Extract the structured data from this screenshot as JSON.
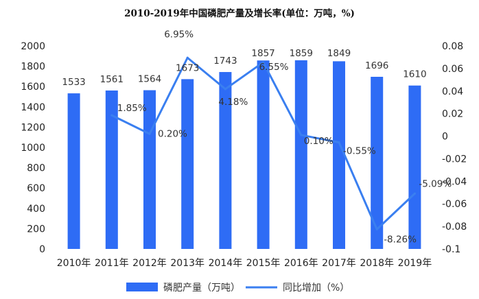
{
  "chart_data": {
    "type": "bar+line",
    "title": "2010-2019年中国磷肥产量及增长率(单位：万吨，%)",
    "categories": [
      "2010年",
      "2011年",
      "2012年",
      "2013年",
      "2014年",
      "2015年",
      "2016年",
      "2017年",
      "2018年",
      "2019年"
    ],
    "series": [
      {
        "name": "磷肥产量（万吨）",
        "type": "bar",
        "axis": "left",
        "color": "#2e6cf5",
        "values": [
          1533,
          1561,
          1564,
          1673,
          1743,
          1857,
          1859,
          1849,
          1696,
          1610
        ],
        "labels": [
          "1533",
          "1561",
          "1564",
          "1673",
          "1743",
          "1857",
          "1859",
          "1849",
          "1696",
          "1610"
        ]
      },
      {
        "name": "同比增加（%）",
        "type": "line",
        "axis": "right",
        "color": "#3a7ff0",
        "values": [
          null,
          0.0185,
          0.002,
          0.0695,
          0.0418,
          0.0655,
          0.001,
          -0.0055,
          -0.0826,
          -0.0509
        ],
        "labels": [
          "",
          "1.85%",
          "0.20%",
          "6.95%",
          "4.18%",
          "6.55%",
          "0.10%",
          "-0.55%",
          "-8.26%",
          "-5.09%"
        ]
      }
    ],
    "y_left": {
      "range": [
        0,
        2000
      ],
      "ticks": [
        "0",
        "200",
        "400",
        "600",
        "800",
        "1000",
        "1200",
        "1400",
        "1600",
        "1800",
        "2000"
      ]
    },
    "y_right": {
      "range": [
        -0.1,
        0.08
      ],
      "ticks": [
        "-0.1",
        "-0.08",
        "-0.06",
        "-0.04",
        "-0.02",
        "0",
        "0.02",
        "0.04",
        "0.06",
        "0.08"
      ]
    },
    "grid": false,
    "legend_position": "bottom"
  }
}
